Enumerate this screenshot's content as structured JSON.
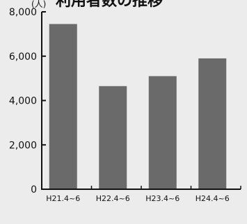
{
  "chart_data": {
    "type": "bar",
    "title": "利用者数の推移",
    "ylabel": "(人)",
    "xlabel": "",
    "categories": [
      "H21.4~6",
      "H22.4~6",
      "H23.4~6",
      "H24.4~6"
    ],
    "values": [
      7450,
      4650,
      5100,
      5900
    ],
    "ylim": [
      0,
      8000
    ],
    "yticks": [
      0,
      2000,
      4000,
      6000,
      8000
    ],
    "ytick_labels": [
      "0",
      "2,000",
      "4,000",
      "6,000",
      "8,000"
    ],
    "bar_color": "#6a6a6a",
    "axis_color": "#111111",
    "background": "#ececec",
    "grid": false,
    "legend": "none"
  }
}
